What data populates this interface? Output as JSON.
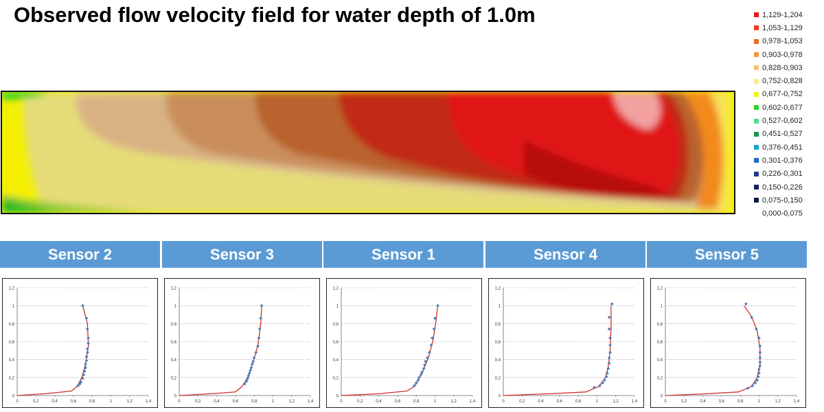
{
  "title": "Observed flow velocity field for water depth of 1.0m",
  "legend": {
    "items": [
      {
        "label": "1,129-1,204",
        "color": "#e8141c"
      },
      {
        "label": "1,053-1,129",
        "color": "#ee3a1c"
      },
      {
        "label": "0,978-1,053",
        "color": "#f06a1e"
      },
      {
        "label": "0,903-0,978",
        "color": "#f5963a"
      },
      {
        "label": "0,828-0,903",
        "color": "#f7c36a"
      },
      {
        "label": "0,752-0,828",
        "color": "#fbe98e"
      },
      {
        "label": "0,677-0,752",
        "color": "#f6f200"
      },
      {
        "label": "0,602-0,677",
        "color": "#2ed52a"
      },
      {
        "label": "0,527-0,602",
        "color": "#4ee28a"
      },
      {
        "label": "0,451-0,527",
        "color": "#159a49"
      },
      {
        "label": "0,376-0,451",
        "color": "#1ba3e0"
      },
      {
        "label": "0,301-0,376",
        "color": "#1c6bc0"
      },
      {
        "label": "0,226-0,301",
        "color": "#1e3c8c"
      },
      {
        "label": "0,150-0,226",
        "color": "#14205e"
      },
      {
        "label": "0,075-0,150",
        "color": "#0c1a4a"
      },
      {
        "label": "0,000-0,075",
        "color": "#ffffff"
      }
    ]
  },
  "sensors": [
    {
      "label": "Sensor 2"
    },
    {
      "label": "Sensor 3"
    },
    {
      "label": "Sensor 1"
    },
    {
      "label": "Sensor 4"
    },
    {
      "label": "Sensor 5"
    }
  ],
  "chart_data": [
    {
      "type": "scatter",
      "title": "Sensor 2",
      "xlim": [
        0,
        1.4
      ],
      "ylim": [
        0,
        1.2
      ],
      "xticks": [
        "0",
        "0,2",
        "0,4",
        "0,6",
        "0,8",
        "1",
        "1,2",
        "1,4"
      ],
      "yticks": [
        "0",
        "0,2",
        "0,4",
        "0,6",
        "0,8",
        "1",
        "1,2"
      ],
      "grid": true,
      "points": [
        [
          0.7,
          1.0
        ],
        [
          0.74,
          0.86
        ],
        [
          0.75,
          0.74
        ],
        [
          0.76,
          0.64
        ],
        [
          0.76,
          0.58
        ],
        [
          0.75,
          0.52
        ],
        [
          0.75,
          0.48
        ],
        [
          0.74,
          0.43
        ],
        [
          0.74,
          0.39
        ],
        [
          0.73,
          0.35
        ],
        [
          0.73,
          0.31
        ],
        [
          0.72,
          0.27
        ],
        [
          0.71,
          0.23
        ],
        [
          0.7,
          0.19
        ],
        [
          0.68,
          0.15
        ],
        [
          0.67,
          0.13
        ],
        [
          0.65,
          0.11
        ]
      ],
      "fit": [
        [
          0,
          0
        ],
        [
          0.3,
          0.02
        ],
        [
          0.58,
          0.05
        ],
        [
          0.64,
          0.1
        ],
        [
          0.69,
          0.2
        ],
        [
          0.73,
          0.35
        ],
        [
          0.76,
          0.55
        ],
        [
          0.75,
          0.8
        ],
        [
          0.72,
          0.92
        ],
        [
          0.7,
          1.0
        ]
      ]
    },
    {
      "type": "scatter",
      "title": "Sensor 3",
      "xlim": [
        0,
        1.4
      ],
      "ylim": [
        0,
        1.2
      ],
      "xticks": [
        "0",
        "0,2",
        "0,4",
        "0,6",
        "0,8",
        "1",
        "1,2",
        "1,4"
      ],
      "yticks": [
        "0",
        "0,2",
        "0,4",
        "0,6",
        "0,8",
        "1",
        "1,2"
      ],
      "grid": true,
      "points": [
        [
          0.88,
          1.0
        ],
        [
          0.87,
          0.86
        ],
        [
          0.86,
          0.74
        ],
        [
          0.85,
          0.64
        ],
        [
          0.84,
          0.55
        ],
        [
          0.82,
          0.48
        ],
        [
          0.8,
          0.42
        ],
        [
          0.79,
          0.38
        ],
        [
          0.78,
          0.35
        ],
        [
          0.77,
          0.31
        ],
        [
          0.76,
          0.28
        ],
        [
          0.75,
          0.25
        ],
        [
          0.74,
          0.22
        ],
        [
          0.73,
          0.19
        ],
        [
          0.72,
          0.16
        ],
        [
          0.7,
          0.13
        ]
      ],
      "fit": [
        [
          0,
          0
        ],
        [
          0.35,
          0.02
        ],
        [
          0.6,
          0.04
        ],
        [
          0.67,
          0.1
        ],
        [
          0.73,
          0.2
        ],
        [
          0.79,
          0.38
        ],
        [
          0.84,
          0.56
        ],
        [
          0.87,
          0.8
        ],
        [
          0.88,
          1.0
        ]
      ]
    },
    {
      "type": "scatter",
      "title": "Sensor 1",
      "xlim": [
        0,
        1.4
      ],
      "ylim": [
        0,
        1.2
      ],
      "xticks": [
        "0",
        "0,2",
        "0,4",
        "0,6",
        "0,8",
        "1",
        "1,2",
        "1,4"
      ],
      "yticks": [
        "0",
        "0,2",
        "0,4",
        "0,6",
        "0,8",
        "1",
        "1,2"
      ],
      "grid": true,
      "points": [
        [
          1.03,
          1.0
        ],
        [
          1.0,
          0.86
        ],
        [
          0.99,
          0.74
        ],
        [
          0.97,
          0.64
        ],
        [
          0.96,
          0.56
        ],
        [
          0.94,
          0.48
        ],
        [
          0.92,
          0.42
        ],
        [
          0.9,
          0.38
        ],
        [
          0.89,
          0.34
        ],
        [
          0.88,
          0.3
        ],
        [
          0.86,
          0.26
        ],
        [
          0.85,
          0.23
        ],
        [
          0.83,
          0.2
        ],
        [
          0.82,
          0.17
        ],
        [
          0.8,
          0.14
        ],
        [
          0.78,
          0.11
        ]
      ],
      "fit": [
        [
          0,
          0
        ],
        [
          0.4,
          0.02
        ],
        [
          0.7,
          0.05
        ],
        [
          0.78,
          0.1
        ],
        [
          0.86,
          0.24
        ],
        [
          0.93,
          0.42
        ],
        [
          0.98,
          0.62
        ],
        [
          1.01,
          0.82
        ],
        [
          1.03,
          1.0
        ]
      ]
    },
    {
      "type": "scatter",
      "title": "Sensor 4",
      "xlim": [
        0,
        1.4
      ],
      "ylim": [
        0,
        1.2
      ],
      "xticks": [
        "0",
        "0,2",
        "0,4",
        "0,6",
        "0,8",
        "1",
        "1,2",
        "1,4"
      ],
      "yticks": [
        "0",
        "0,2",
        "0,4",
        "0,6",
        "0,8",
        "1",
        "1,2"
      ],
      "grid": true,
      "points": [
        [
          1.16,
          1.02
        ],
        [
          1.13,
          0.87
        ],
        [
          1.13,
          0.74
        ],
        [
          1.14,
          0.64
        ],
        [
          1.14,
          0.56
        ],
        [
          1.14,
          0.48
        ],
        [
          1.13,
          0.42
        ],
        [
          1.13,
          0.36
        ],
        [
          1.12,
          0.3
        ],
        [
          1.11,
          0.25
        ],
        [
          1.1,
          0.21
        ],
        [
          1.08,
          0.17
        ],
        [
          1.06,
          0.14
        ],
        [
          1.03,
          0.11
        ],
        [
          0.97,
          0.09
        ]
      ],
      "fit": [
        [
          0,
          0
        ],
        [
          0.5,
          0.02
        ],
        [
          0.88,
          0.04
        ],
        [
          1.02,
          0.1
        ],
        [
          1.09,
          0.2
        ],
        [
          1.12,
          0.32
        ],
        [
          1.14,
          0.5
        ],
        [
          1.15,
          0.75
        ],
        [
          1.15,
          1.0
        ]
      ]
    },
    {
      "type": "scatter",
      "title": "Sensor 5",
      "xlim": [
        0,
        1.4
      ],
      "ylim": [
        0,
        1.2
      ],
      "xticks": [
        "0",
        "0,2",
        "0,4",
        "0,6",
        "0,8",
        "1",
        "1,2",
        "1,4"
      ],
      "yticks": [
        "0",
        "0,2",
        "0,4",
        "0,6",
        "0,8",
        "1",
        "1,2"
      ],
      "grid": true,
      "points": [
        [
          0.86,
          1.02
        ],
        [
          0.92,
          0.87
        ],
        [
          0.97,
          0.74
        ],
        [
          1.0,
          0.64
        ],
        [
          1.01,
          0.55
        ],
        [
          1.01,
          0.48
        ],
        [
          1.01,
          0.42
        ],
        [
          1.01,
          0.37
        ],
        [
          1.01,
          0.33
        ],
        [
          1.0,
          0.29
        ],
        [
          1.0,
          0.25
        ],
        [
          0.99,
          0.21
        ],
        [
          0.98,
          0.17
        ],
        [
          0.96,
          0.14
        ],
        [
          0.93,
          0.11
        ],
        [
          0.88,
          0.08
        ]
      ],
      "fit": [
        [
          0,
          0
        ],
        [
          0.45,
          0.02
        ],
        [
          0.78,
          0.04
        ],
        [
          0.92,
          0.1
        ],
        [
          0.98,
          0.2
        ],
        [
          1.01,
          0.35
        ],
        [
          1.01,
          0.52
        ],
        [
          0.98,
          0.72
        ],
        [
          0.92,
          0.88
        ],
        [
          0.84,
          1.0
        ]
      ]
    }
  ]
}
